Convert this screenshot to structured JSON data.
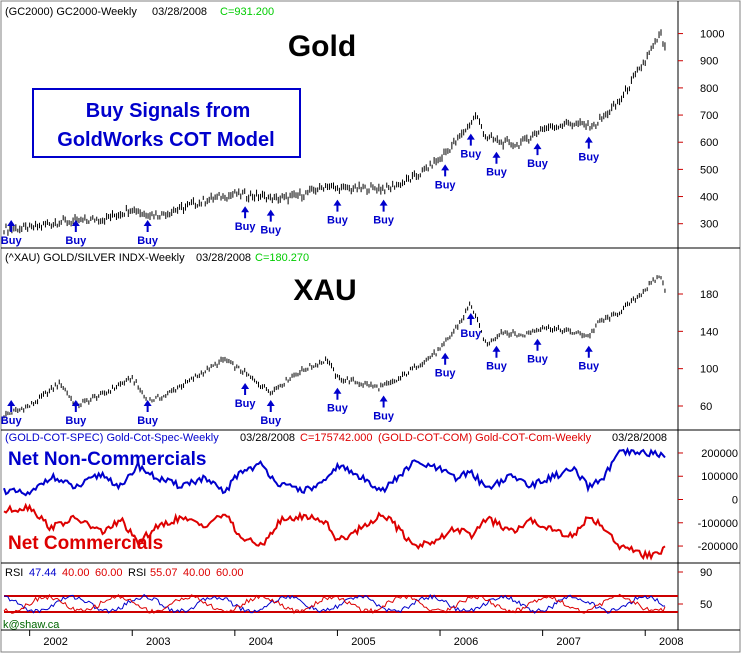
{
  "panels": {
    "gold": {
      "header": {
        "symbol": "(GC2000) GC2000-Weekly",
        "date": "03/28/2008",
        "close": "C=931.200"
      },
      "title": "Gold"
    },
    "xau": {
      "header": {
        "symbol": "(^XAU) GOLD/SILVER INDX-Weekly",
        "date": "03/28/2008",
        "close": "C=180.270"
      },
      "title": "XAU"
    },
    "cot": {
      "header": {
        "spec": "(GOLD-COT-SPEC) Gold-Cot-Spec-Weekly",
        "spec_date": "03/28/2008",
        "spec_close": "C=175742.000",
        "com": "(GOLD-COT-COM) Gold-COT-Com-Weekly",
        "com_date": "03/28/2008"
      },
      "label_spec": "Net Non-Commercials",
      "label_com": "Net Commercials"
    },
    "rsi": {
      "header": {
        "rsi1": "RSI",
        "rsi1_val": "47.44",
        "rsi1_lo": "40.00",
        "rsi1_hi": "60.00",
        "rsi2": "RSI",
        "rsi2_val": "55.07",
        "rsi2_lo": "40.00",
        "rsi2_hi": "60.00"
      }
    }
  },
  "signal_box": {
    "line1": "Buy Signals from",
    "line2": "GoldWorks COT Model"
  },
  "buy_label": "Buy",
  "watermark": "k@shaw.ca",
  "colors": {
    "price": "#000000",
    "spec": "#0000cc",
    "com": "#dd0000",
    "title_blue": "#0000cc",
    "green": "#00cc00",
    "axis_red": "#cc0000"
  },
  "chart_data": [
    {
      "type": "line",
      "name": "Gold",
      "x": [
        2001.75,
        2002.0,
        2002.25,
        2002.5,
        2002.75,
        2003.0,
        2003.1,
        2003.25,
        2003.5,
        2003.75,
        2004.0,
        2004.25,
        2004.4,
        2004.6,
        2004.9,
        2005.0,
        2005.25,
        2005.5,
        2005.75,
        2006.0,
        2006.2,
        2006.35,
        2006.45,
        2006.6,
        2006.75,
        2007.0,
        2007.25,
        2007.5,
        2007.75,
        2008.0,
        2008.15,
        2008.2
      ],
      "y": [
        280,
        285,
        305,
        310,
        320,
        355,
        340,
        330,
        360,
        390,
        410,
        400,
        390,
        400,
        440,
        430,
        430,
        430,
        470,
        540,
        620,
        700,
        620,
        600,
        590,
        650,
        670,
        660,
        750,
        900,
        1000,
        931
      ],
      "buy_signals": [
        2001.82,
        2002.45,
        2003.15,
        2004.1,
        2004.35,
        2005.0,
        2005.45,
        2006.05,
        2006.3,
        2006.55,
        2006.95,
        2007.45
      ],
      "y_ticks": [
        300,
        400,
        500,
        600,
        700,
        800,
        900,
        1000
      ],
      "ylim": [
        240,
        1050
      ]
    },
    {
      "type": "line",
      "name": "XAU",
      "x": [
        2001.75,
        2002.0,
        2002.3,
        2002.45,
        2002.75,
        2003.0,
        2003.15,
        2003.3,
        2003.6,
        2003.9,
        2004.1,
        2004.35,
        2004.6,
        2004.9,
        2005.0,
        2005.4,
        2005.55,
        2005.8,
        2006.0,
        2006.2,
        2006.3,
        2006.45,
        2006.6,
        2006.8,
        2007.0,
        2007.25,
        2007.45,
        2007.55,
        2007.75,
        2008.0,
        2008.15,
        2008.2
      ],
      "y": [
        50,
        60,
        85,
        60,
        75,
        90,
        65,
        70,
        90,
        110,
        95,
        75,
        95,
        110,
        90,
        80,
        85,
        105,
        120,
        150,
        170,
        125,
        140,
        135,
        145,
        140,
        135,
        150,
        160,
        185,
        200,
        180
      ],
      "buy_signals": [
        2001.82,
        2002.45,
        2003.15,
        2004.1,
        2004.35,
        2005.0,
        2005.45,
        2006.05,
        2006.3,
        2006.55,
        2006.95,
        2007.45
      ],
      "y_ticks": [
        60,
        100,
        140,
        180
      ],
      "ylim": [
        45,
        210
      ]
    },
    {
      "type": "line",
      "name": "COT",
      "series": [
        {
          "x": [
            2001.75,
            2002.0,
            2002.2,
            2002.45,
            2002.7,
            2002.9,
            2003.05,
            2003.2,
            2003.45,
            2003.7,
            2003.9,
            2004.05,
            2004.25,
            2004.45,
            2004.7,
            2004.9,
            2005.0,
            2005.2,
            2005.45,
            2005.6,
            2005.75,
            2006.0,
            2006.15,
            2006.3,
            2006.45,
            2006.7,
            2006.9,
            2007.05,
            2007.3,
            2007.45,
            2007.6,
            2007.75,
            2008.0,
            2008.15,
            2008.2
          ],
          "values": [
            40000,
            20000,
            100000,
            50000,
            110000,
            50000,
            150000,
            100000,
            60000,
            90000,
            30000,
            120000,
            150000,
            60000,
            40000,
            80000,
            150000,
            100000,
            40000,
            100000,
            160000,
            130000,
            90000,
            120000,
            50000,
            100000,
            60000,
            90000,
            130000,
            50000,
            100000,
            200000,
            200000,
            195000,
            175742
          ]
        },
        {
          "x": [
            2001.75,
            2002.0,
            2002.2,
            2002.45,
            2002.7,
            2002.9,
            2003.05,
            2003.2,
            2003.45,
            2003.7,
            2003.9,
            2004.05,
            2004.25,
            2004.45,
            2004.7,
            2004.9,
            2005.0,
            2005.2,
            2005.45,
            2005.6,
            2005.75,
            2006.0,
            2006.15,
            2006.3,
            2006.45,
            2006.7,
            2006.9,
            2007.05,
            2007.3,
            2007.45,
            2007.6,
            2007.75,
            2008.0,
            2008.15,
            2008.2
          ],
          "values": [
            -50000,
            -30000,
            -120000,
            -80000,
            -140000,
            -90000,
            -190000,
            -130000,
            -80000,
            -110000,
            -60000,
            -160000,
            -200000,
            -90000,
            -70000,
            -100000,
            -180000,
            -130000,
            -60000,
            -130000,
            -200000,
            -170000,
            -120000,
            -160000,
            -80000,
            -140000,
            -90000,
            -120000,
            -160000,
            -70000,
            -120000,
            -200000,
            -240000,
            -235000,
            -205000
          ]
        }
      ],
      "y_ticks": [
        -200000,
        -100000,
        0,
        100000,
        200000
      ],
      "ylim": [
        -260000,
        230000
      ]
    },
    {
      "type": "line",
      "name": "RSI",
      "y_ticks": [
        50,
        90
      ],
      "ylim": [
        20,
        95
      ],
      "bands": [
        40,
        60
      ]
    }
  ],
  "x_axis": {
    "years": [
      "2002",
      "2003",
      "2004",
      "2005",
      "2006",
      "2007",
      "2008"
    ],
    "xlim": [
      2001.75,
      2008.3
    ]
  }
}
